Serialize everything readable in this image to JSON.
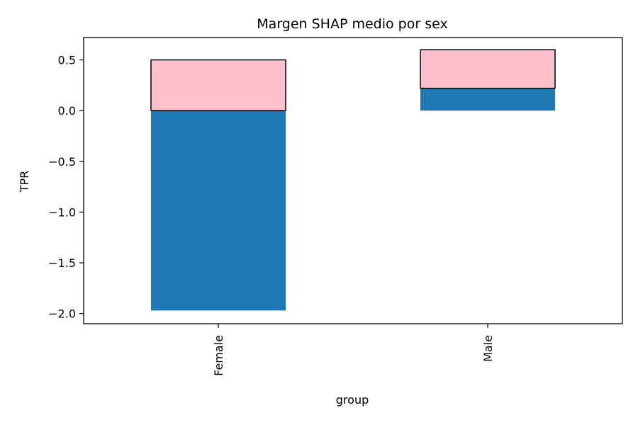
{
  "chart_data": {
    "type": "bar",
    "title": "Margen SHAP medio por sex",
    "xlabel": "group",
    "ylabel": "TPR",
    "categories": [
      "Female",
      "Male"
    ],
    "series": [
      {
        "values": [
          -1.97,
          0.22
        ],
        "color": "#1f77b4"
      },
      {
        "values": [
          0.5,
          0.6
        ],
        "color": "#ffc0cb",
        "edgecolor": "#000000"
      }
    ],
    "ylim": [
      -2.1,
      0.72
    ],
    "yticks": [
      0.5,
      0.0,
      -0.5,
      -1.0,
      -1.5,
      -2.0
    ],
    "ytick_labels": [
      "0.5",
      "0.0",
      "−0.5",
      "−1.0",
      "−1.5",
      "−2.0"
    ],
    "grid": false
  }
}
